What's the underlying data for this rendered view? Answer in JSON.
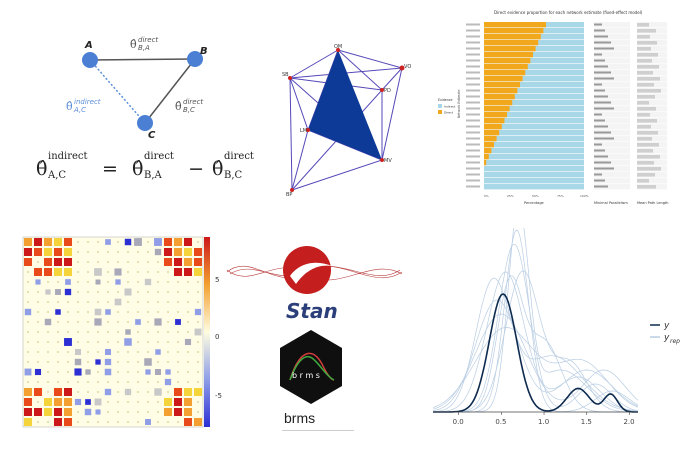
{
  "triangle": {
    "nodes": {
      "a": "A",
      "b": "B",
      "c": "C"
    },
    "edge_ba_sub": "B,A",
    "edge_ba_sup": "direct",
    "edge_bc_sub": "B,C",
    "edge_bc_sup": "direct",
    "edge_ac_sub": "A,C",
    "edge_ac_sup": "indirect",
    "formula": {
      "lhs_sup": "indirect",
      "lhs_sub": "A,C",
      "t1_sup": "direct",
      "t1_sub": "B,A",
      "t2_sup": "direct",
      "t2_sub": "B,C",
      "eq": "=",
      "minus": "−",
      "theta": "θ̂"
    },
    "colors": {
      "node": "#4a7fd4",
      "edge": "#555555",
      "indirect": "#5b8fd8"
    }
  },
  "network": {
    "labels": [
      "OM",
      "SB",
      "VO",
      "PD",
      "MV",
      "LM",
      "BP"
    ],
    "colors": {
      "edge": "#5548b8",
      "fill": "#0d3a96",
      "node": "#cc2222"
    }
  },
  "evidence_chart": {
    "title": "Direct evidence proportion for each network estimate (fixed-effect model)",
    "xlabel": "Percentage",
    "legend_title": "Evidence",
    "legend_items": [
      "Indirect",
      "Direct"
    ],
    "xticks": [
      "0%",
      "25%",
      "50%",
      "75%",
      "100%"
    ],
    "side_labels": [
      "Minimal Parallelism",
      "Mean Path Length"
    ],
    "ylabel": "Network Estimate",
    "colors": {
      "indirect": "#a8d8e8",
      "direct": "#f2a81d"
    }
  },
  "heatmap": {
    "scale_ticks": [
      "5",
      "0",
      "-5"
    ]
  },
  "stan": {
    "name": "Stan",
    "colors": {
      "logo": "#c41e1e",
      "wave": "#b83a3a"
    }
  },
  "brms": {
    "hex_text": "b r m s",
    "name": "brms",
    "colors": {
      "hex": "#0f0f0f",
      "curve_red": "#d43c3c",
      "curve_green": "#3faa3f"
    }
  },
  "ppc_chart": {
    "type": "line",
    "xticks": [
      "0.0",
      "0.5",
      "1.0",
      "1.5",
      "2.0"
    ],
    "xlim": [
      -0.3,
      2.1
    ],
    "legend": {
      "y": "y",
      "yrep": "y",
      "yrep_sub": "rep"
    },
    "colors": {
      "y": "#0d2a4f",
      "yrep": "#b9cde3"
    }
  }
}
